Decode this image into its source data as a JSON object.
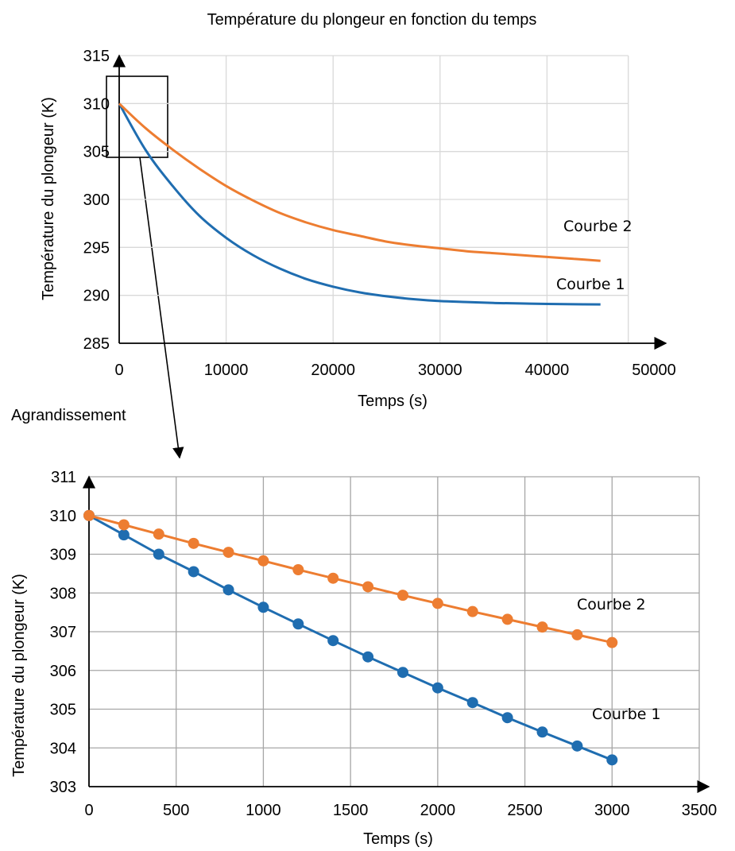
{
  "colors": {
    "series_1": "#1f6db0",
    "series_2": "#ed7d31",
    "axis": "#000000",
    "grid": "#d9d9d9"
  },
  "annotation": {
    "zoom_label": "Agrandissement"
  },
  "chart_data": [
    {
      "type": "line",
      "title": "Température du plongeur en fonction du temps",
      "xlabel": "Temps (s)",
      "ylabel": "Température du plongeur (K)",
      "xlim": [
        0,
        50000
      ],
      "ylim": [
        285,
        315
      ],
      "x_ticks": [
        "0",
        "10000",
        "20000",
        "30000",
        "40000",
        "50000"
      ],
      "y_ticks": [
        "285",
        "290",
        "295",
        "300",
        "305",
        "310",
        "315"
      ],
      "grid": true,
      "series": [
        {
          "name": "Courbe 1",
          "x": [
            0,
            2500,
            5000,
            7500,
            10000,
            12500,
            15000,
            17500,
            20000,
            22500,
            25000,
            27500,
            30000,
            32500,
            35000,
            37500,
            40000,
            42500,
            45000
          ],
          "y": [
            310,
            305.1,
            301.4,
            298.3,
            296,
            294.2,
            292.8,
            291.7,
            290.9,
            290.3,
            289.9,
            289.6,
            289.4,
            289.3,
            289.2,
            289.15,
            289.1,
            289.07,
            289.05
          ]
        },
        {
          "name": "Courbe 2",
          "x": [
            0,
            2500,
            5000,
            7500,
            10000,
            12500,
            15000,
            17500,
            20000,
            22500,
            25000,
            27500,
            30000,
            32500,
            35000,
            37500,
            40000,
            42500,
            45000
          ],
          "y": [
            310,
            307.4,
            305.2,
            303.2,
            301.4,
            299.9,
            298.6,
            297.6,
            296.8,
            296.2,
            295.6,
            295.2,
            294.9,
            294.6,
            294.4,
            294.2,
            294.0,
            293.8,
            293.6
          ]
        }
      ]
    },
    {
      "type": "line",
      "title": "",
      "xlabel": "Temps (s)",
      "ylabel": "Température du plongeur (K)",
      "xlim": [
        0,
        3500
      ],
      "ylim": [
        303,
        311
      ],
      "x_ticks": [
        "0",
        "500",
        "1000",
        "1500",
        "2000",
        "2500",
        "3000",
        "3500"
      ],
      "y_ticks": [
        "303",
        "304",
        "305",
        "306",
        "307",
        "308",
        "309",
        "310",
        "311"
      ],
      "grid": true,
      "series": [
        {
          "name": "Courbe 1",
          "x": [
            0,
            200,
            400,
            600,
            800,
            1000,
            1200,
            1400,
            1600,
            1800,
            2000,
            2200,
            2400,
            2600,
            2800,
            3000
          ],
          "y": [
            310,
            309.5,
            309.0,
            308.55,
            308.08,
            307.63,
            307.2,
            306.77,
            306.35,
            305.95,
            305.55,
            305.17,
            304.78,
            304.41,
            304.05,
            303.69
          ]
        },
        {
          "name": "Courbe 2",
          "x": [
            0,
            200,
            400,
            600,
            800,
            1000,
            1200,
            1400,
            1600,
            1800,
            2000,
            2200,
            2400,
            2600,
            2800,
            3000
          ],
          "y": [
            310,
            309.76,
            309.52,
            309.28,
            309.05,
            308.83,
            308.6,
            308.38,
            308.16,
            307.94,
            307.73,
            307.52,
            307.32,
            307.12,
            306.92,
            306.72
          ]
        }
      ]
    }
  ]
}
